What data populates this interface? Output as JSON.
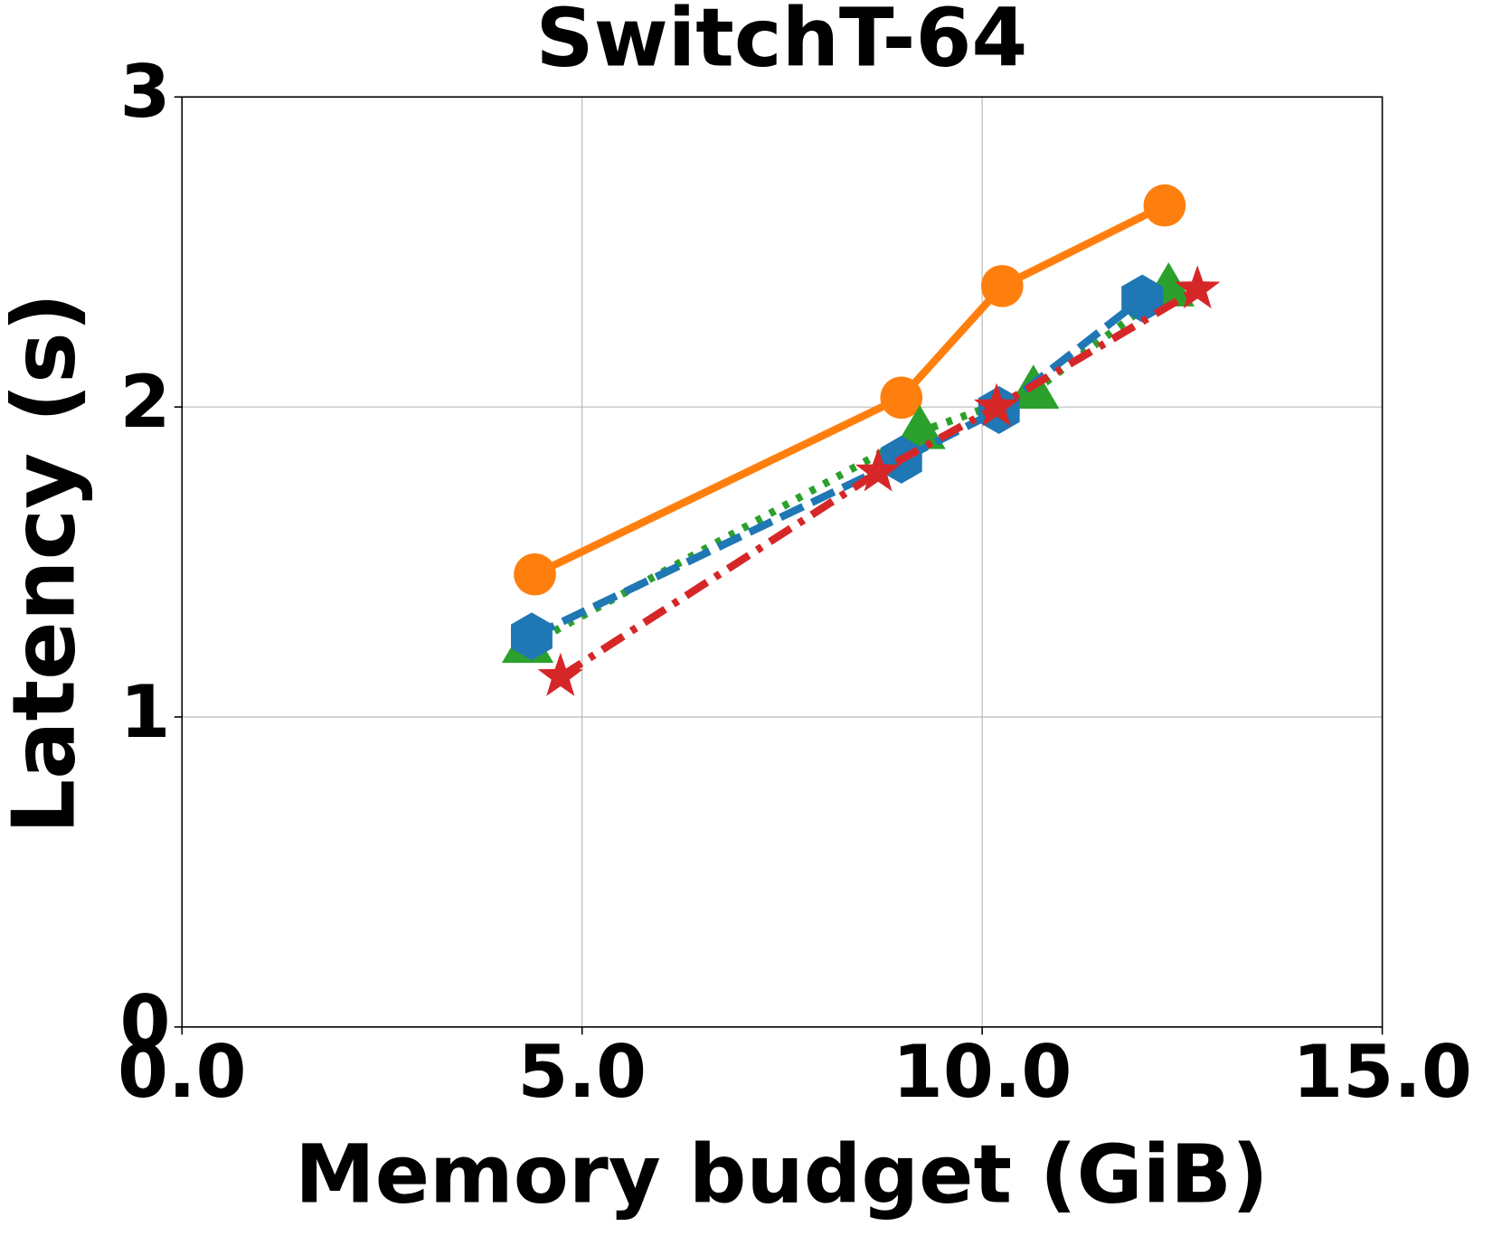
{
  "chart_data": {
    "type": "line",
    "title": "SwitchT-64",
    "xlabel": "Memory budget (GiB)",
    "ylabel": "Latency (s)",
    "xlim": [
      0,
      15
    ],
    "ylim": [
      0,
      3
    ],
    "xticks": [
      {
        "value": 0,
        "label": "0.0"
      },
      {
        "value": 5,
        "label": "5.0"
      },
      {
        "value": 10,
        "label": "10.0"
      },
      {
        "value": 15,
        "label": "15.0"
      }
    ],
    "yticks": [
      0,
      1,
      2,
      3
    ],
    "grid": true,
    "series": [
      {
        "color": "#ff7f0e",
        "marker": "circle",
        "linestyle": "solid",
        "x": [
          4.41,
          8.99,
          10.25,
          12.28
        ],
        "values": [
          1.46,
          2.03,
          2.39,
          2.65
        ]
      },
      {
        "color": "#2ca02c",
        "marker": "triangle",
        "linestyle": "dotted",
        "x": [
          4.32,
          9.22,
          10.64,
          12.33
        ],
        "values": [
          1.23,
          1.92,
          2.05,
          2.38
        ]
      },
      {
        "color": "#1f77b4",
        "marker": "hexagon",
        "linestyle": "dashed",
        "x": [
          4.37,
          8.99,
          10.21,
          12.0
        ],
        "values": [
          1.26,
          1.83,
          1.99,
          2.35
        ]
      },
      {
        "color": "#d62728",
        "marker": "star",
        "linestyle": "dashdot",
        "x": [
          4.73,
          8.7,
          10.18,
          12.69
        ],
        "values": [
          1.13,
          1.79,
          2.0,
          2.38
        ]
      }
    ]
  }
}
